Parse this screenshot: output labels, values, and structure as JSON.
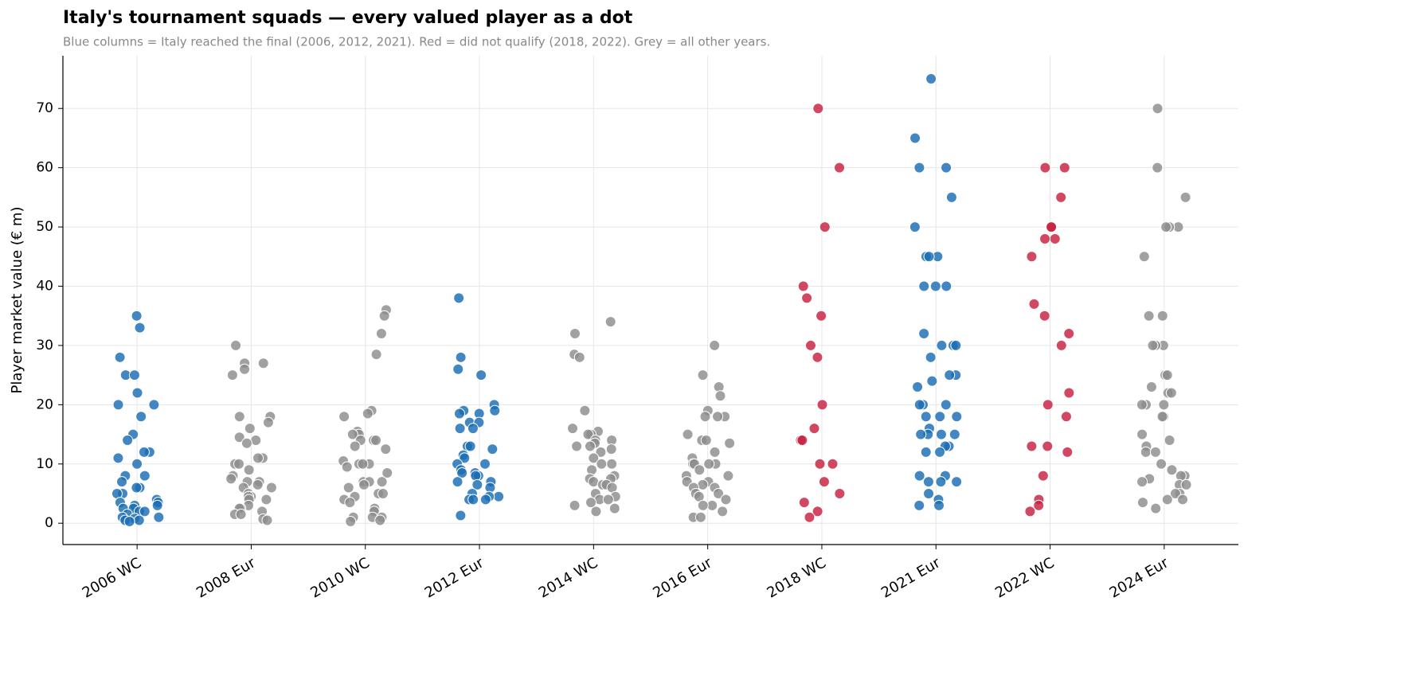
{
  "chart_data": {
    "type": "strip",
    "title": "Italy's tournament squads — every valued player as a dot",
    "subtitle": "Blue columns = Italy reached the final (2006, 2012, 2021).  Red = did not qualify (2018, 2022).  Grey = all other years.",
    "y_label": "Player market value (€ m)",
    "categories": [
      "2006 WC",
      "2008 Eur",
      "2010 WC",
      "2012 Eur",
      "2014 WC",
      "2016 Eur",
      "2018 WC",
      "2021 Eur",
      "2022 WC",
      "2024 Eur"
    ],
    "colors": [
      "#1a6db5",
      "#8c8c8c",
      "#8c8c8c",
      "#1a6db5",
      "#8c8c8c",
      "#8c8c8c",
      "#c8203f",
      "#1a6db5",
      "#c8203f",
      "#8c8c8c"
    ],
    "values": [
      [
        35,
        33,
        28,
        25,
        25,
        22,
        20,
        20,
        18,
        15,
        14,
        12,
        12,
        11,
        10,
        8,
        8,
        7,
        6,
        6,
        5,
        5,
        4,
        3.5,
        3.5,
        3,
        3,
        2.5,
        2.5,
        2,
        2,
        1.5,
        1,
        1,
        0.8,
        0.5,
        0.5,
        0.3
      ],
      [
        30,
        27,
        27,
        26,
        25,
        18,
        18,
        17,
        16,
        14.5,
        14,
        13.5,
        11,
        11,
        10,
        10,
        9,
        8,
        7.5,
        7,
        7,
        6.5,
        6,
        6,
        5,
        4.5,
        4.5,
        4,
        4,
        3,
        2.5,
        2.5,
        2,
        1.5,
        1.5,
        0.7,
        0.5
      ],
      [
        36,
        35,
        32,
        28.5,
        19,
        18.5,
        18,
        15.5,
        15,
        15,
        14,
        14,
        14,
        13,
        12.5,
        10.5,
        10,
        10,
        10,
        9.5,
        8.5,
        7,
        7,
        7,
        6.5,
        6,
        5,
        5,
        4.5,
        4,
        3.5,
        2.5,
        2,
        1,
        1,
        1,
        0.5,
        0.3
      ],
      [
        38,
        28,
        26,
        25,
        20,
        19,
        19,
        18.5,
        18.5,
        17,
        17,
        16,
        16,
        13,
        13,
        12.5,
        11.5,
        11,
        10,
        10,
        9,
        8.5,
        8.5,
        8,
        8,
        7,
        7,
        6.5,
        6,
        5,
        4.5,
        4.5,
        4,
        4,
        4,
        1.3
      ],
      [
        34,
        32,
        28.5,
        28,
        19,
        16,
        15.5,
        15,
        15,
        14,
        14,
        13.5,
        13,
        13,
        12.5,
        12,
        11,
        10,
        10,
        9,
        8,
        7.5,
        7.5,
        7,
        6.5,
        6.5,
        6,
        5,
        4.5,
        4,
        4,
        3.5,
        3,
        2.5,
        2
      ],
      [
        30,
        25,
        23,
        21.5,
        19,
        18,
        18,
        18,
        15,
        14,
        14,
        13.5,
        12,
        11,
        10,
        10,
        10,
        10,
        9,
        8,
        8,
        7,
        7,
        6.5,
        6,
        6,
        5,
        5,
        4.5,
        4,
        3,
        3,
        2,
        1,
        1
      ],
      [
        70,
        60,
        50,
        40,
        38,
        35,
        30,
        28,
        20,
        16,
        14,
        14,
        10,
        10,
        7,
        5,
        3.5,
        2,
        1
      ],
      [
        75,
        65,
        60,
        60,
        55,
        50,
        45,
        45,
        45,
        40,
        40,
        40,
        32,
        30,
        30,
        30,
        28,
        25,
        25,
        24,
        23,
        20,
        20,
        20,
        18,
        18,
        18,
        16,
        15,
        15,
        15,
        15,
        13,
        13,
        12,
        12,
        8,
        8,
        7,
        7,
        7,
        5,
        4,
        3,
        3
      ],
      [
        60,
        60,
        55,
        50,
        50,
        48,
        48,
        45,
        37,
        35,
        32,
        30,
        22,
        20,
        18,
        13,
        13,
        12,
        8,
        4,
        3,
        2
      ],
      [
        70,
        60,
        55,
        50,
        50,
        50,
        45,
        35,
        35,
        30,
        30,
        30,
        25,
        25,
        23,
        22,
        22,
        20,
        20,
        20,
        18,
        18,
        15,
        14,
        13,
        12,
        12,
        10,
        9,
        8,
        8,
        7.5,
        7,
        6.5,
        6.5,
        5,
        5,
        4,
        4,
        3.5,
        2.5
      ]
    ],
    "ylim": [
      -3.6,
      78.9
    ],
    "yticks": [
      0,
      10,
      20,
      30,
      40,
      50,
      60,
      70
    ],
    "grid": true
  }
}
